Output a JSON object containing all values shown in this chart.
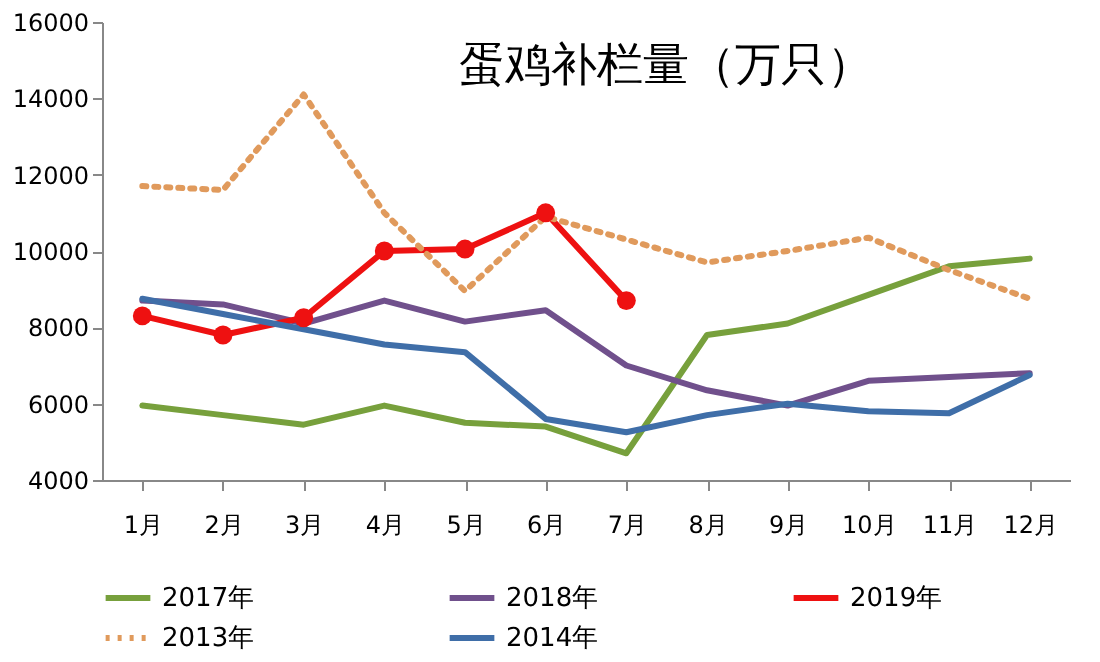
{
  "chart_data": {
    "type": "line",
    "title": "蛋鸡补栏量（万只）",
    "categories": [
      "1月",
      "2月",
      "3月",
      "4月",
      "5月",
      "6月",
      "7月",
      "8月",
      "9月",
      "10月",
      "11月",
      "12月"
    ],
    "series": [
      {
        "name": "2017年",
        "color": "#77a03c",
        "values": [
          5950,
          5700,
          5450,
          5950,
          5500,
          5400,
          4700,
          7800,
          8100,
          8850,
          9600,
          9800
        ]
      },
      {
        "name": "2018年",
        "color": "#70508c",
        "values": [
          8700,
          8600,
          8100,
          8700,
          8150,
          8450,
          7000,
          6350,
          5950,
          6600,
          6700,
          6800
        ]
      },
      {
        "name": "2019年",
        "color": "#ee1111",
        "marker": "circle",
        "values": [
          8300,
          7800,
          8250,
          10000,
          10050,
          11000,
          8700,
          null,
          null,
          null,
          null,
          null
        ]
      },
      {
        "name": "2013年",
        "color": "#e09a5c",
        "line_style": "dotted",
        "values": [
          11700,
          11600,
          14100,
          11000,
          8950,
          10900,
          10300,
          9700,
          10000,
          10350,
          9500,
          8750
        ]
      },
      {
        "name": "2014年",
        "color": "#3f6ea8",
        "values": [
          8750,
          8350,
          7950,
          7550,
          7350,
          5600,
          5250,
          5700,
          6000,
          5800,
          5750,
          6750
        ]
      }
    ],
    "ylim": [
      4000,
      16000
    ],
    "yticks": [
      4000,
      6000,
      8000,
      10000,
      12000,
      14000,
      16000
    ],
    "grid": false,
    "legend": "bottom",
    "marker": "none",
    "line_style": "solid"
  }
}
